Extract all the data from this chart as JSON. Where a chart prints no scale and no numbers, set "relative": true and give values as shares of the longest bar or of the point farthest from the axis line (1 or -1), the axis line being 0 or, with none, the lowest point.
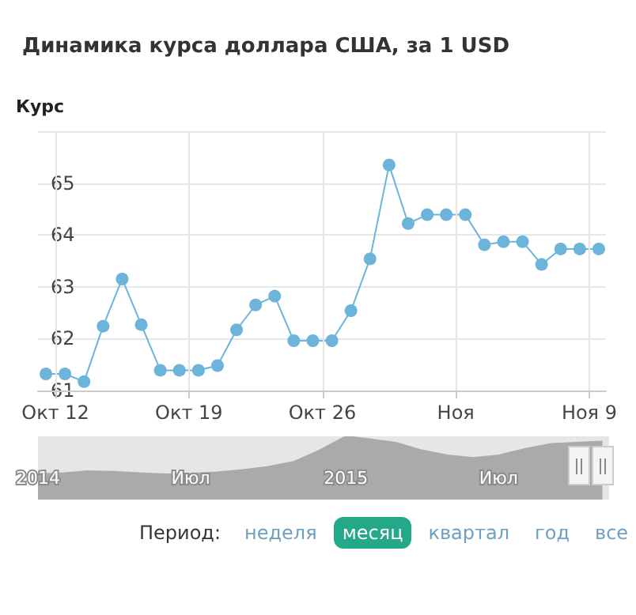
{
  "chart_data": [
    {
      "type": "line",
      "title": "Динамика курса доллара США, за 1 USD",
      "ylabel": "Курс",
      "x": [
        "--10-11T12:00",
        "--10-12T12:00",
        "--10-13T12:00",
        "--10-14T12:00",
        "--10-15T12:00",
        "--10-16T12:00",
        "--10-17T12:00",
        "--10-18T12:00",
        "--10-19T12:00",
        "--10-20T12:00",
        "--10-21T12:00",
        "--10-22T12:00",
        "--10-23T12:00",
        "--10-24T12:00",
        "--10-25T12:00",
        "--10-26T12:00",
        "--10-27T12:00",
        "--10-28T12:00",
        "--10-29T12:00",
        "--10-30T12:00",
        "--10-31T12:00",
        "--11-01T12:00",
        "--11-02T12:00",
        "--11-03T12:00",
        "--11-04T12:00",
        "--11-05T12:00",
        "--11-06T12:00",
        "--11-07T12:00",
        "--11-08T12:00",
        "--11-09T12:00"
      ],
      "values": [
        61.32,
        61.32,
        61.17,
        62.24,
        63.15,
        62.27,
        61.39,
        61.39,
        61.39,
        61.48,
        62.17,
        62.65,
        62.82,
        61.96,
        61.96,
        61.96,
        62.54,
        63.54,
        65.35,
        64.22,
        64.39,
        64.39,
        64.39,
        63.81,
        63.87,
        63.87,
        63.43,
        63.73,
        63.73,
        63.73
      ],
      "color": "#6cb4da",
      "xlim": [
        "--10-11T02:00",
        "--11-09T21:00"
      ],
      "xticks": [
        {
          "value": "--10-12",
          "label": "Окт 12"
        },
        {
          "value": "--10-19",
          "label": "Окт 19"
        },
        {
          "value": "--10-26",
          "label": "Окт 26"
        },
        {
          "value": "--11-02",
          "label": "Ноя"
        },
        {
          "value": "--11-09",
          "label": "Ноя 9"
        }
      ],
      "ylim": [
        61,
        66
      ],
      "yticks": [
        61,
        62,
        63,
        64,
        65,
        {
          "value": 66,
          "label": null
        }
      ],
      "grid": true,
      "marker": "circle",
      "annotations": [
        "Период:",
        "неделя",
        "месяц",
        "квартал",
        "год",
        "все"
      ]
    },
    {
      "type": "area",
      "relative": true,
      "tick_labels": "x",
      "color": "#aaaaaa",
      "x": [
        "2014-01",
        "2014-02",
        "2014-03",
        "2014-04",
        "2014-05",
        "2014-06",
        "2014-07",
        "2014-08",
        "2014-09",
        "2014-10",
        "2014-11",
        "2014-12",
        "2015-01",
        "2015-02",
        "2015-03",
        "2015-04",
        "2015-05",
        "2015-06",
        "2015-07",
        "2015-08",
        "2015-09",
        "2015-10",
        "2015-11"
      ],
      "values": [
        0.4,
        0.42,
        0.45,
        0.44,
        0.42,
        0.4,
        0.41,
        0.43,
        0.47,
        0.52,
        0.6,
        0.78,
        1.0,
        0.95,
        0.9,
        0.78,
        0.7,
        0.66,
        0.7,
        0.8,
        0.88,
        0.9,
        0.92
      ],
      "xlim": [
        "2014-01-01",
        "2015-11-09"
      ],
      "xticks": [
        {
          "value": "2014-01",
          "label": "2014"
        },
        {
          "value": "2014-07",
          "label": "Июл"
        },
        {
          "value": "2015-01",
          "label": "2015"
        },
        {
          "value": "2015-07",
          "label": "Июл"
        }
      ]
    }
  ]
}
